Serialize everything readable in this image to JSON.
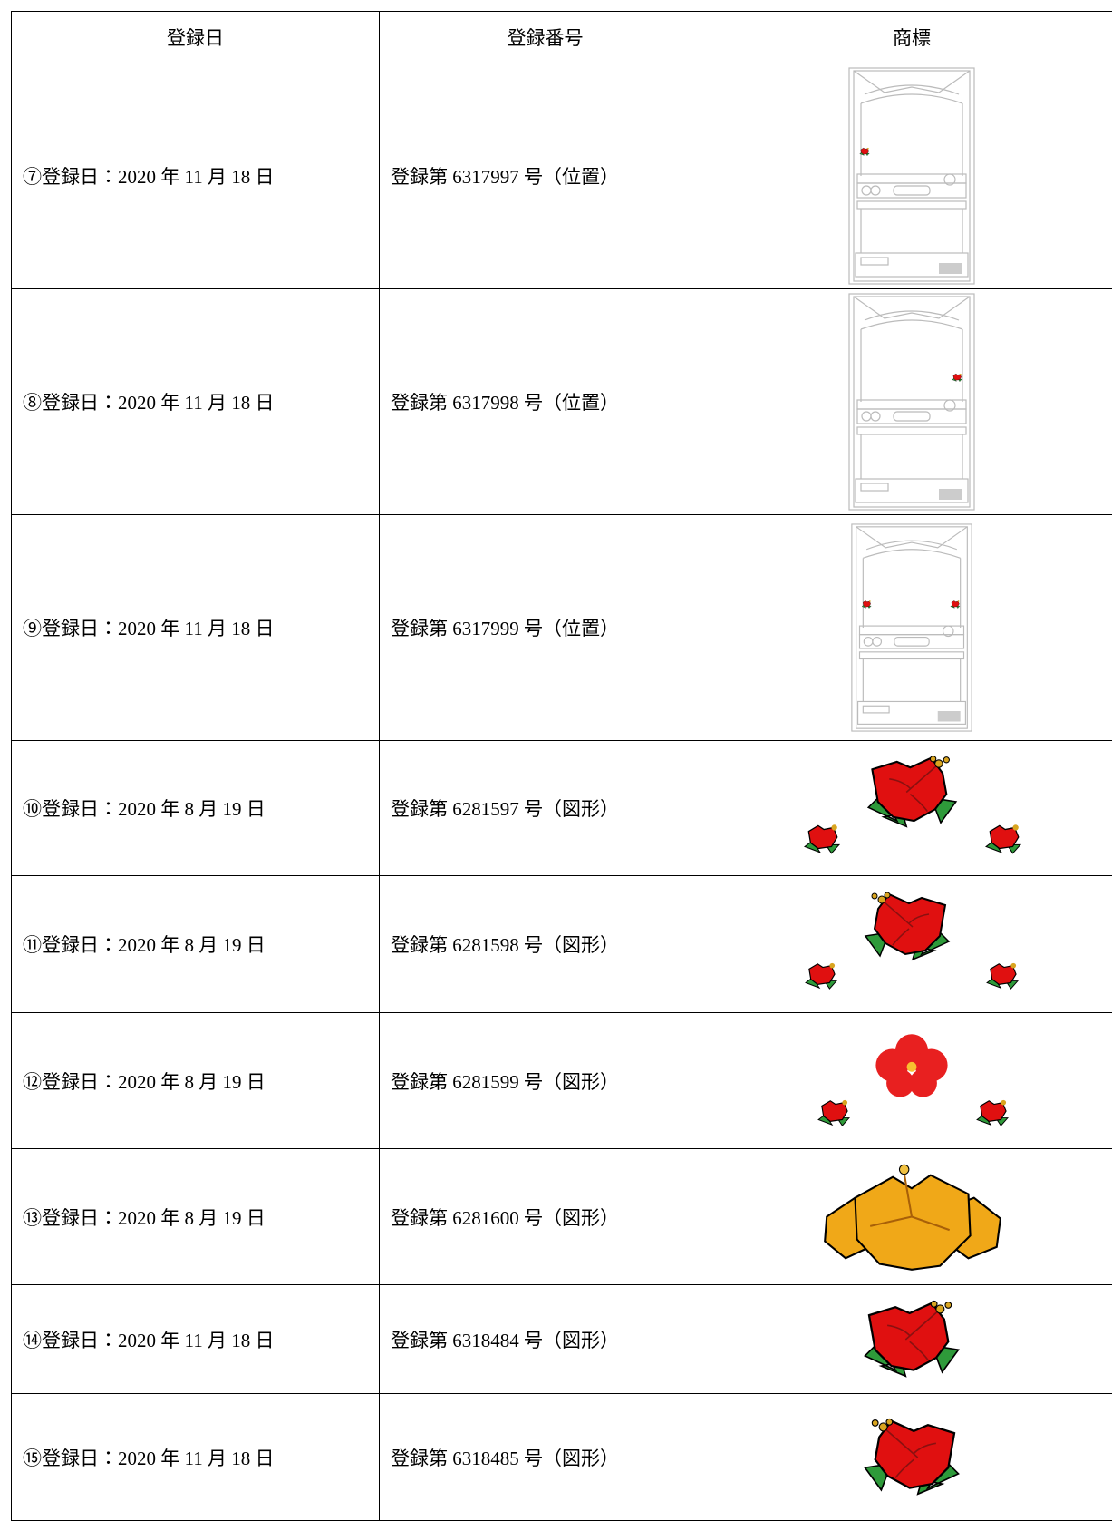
{
  "table": {
    "header": [
      "登録日",
      "登録番号",
      "商標"
    ],
    "rows": [
      [
        "⑦登録日：2020 年 11 月 18 日",
        "登録第 6317997 号（位置）"
      ],
      [
        "⑧登録日：2020 年 11 月 18 日",
        "登録第 6317998 号（位置）"
      ],
      [
        "⑨登録日：2020 年 11 月 18 日",
        "登録第 6317999 号（位置）"
      ],
      [
        "⑩登録日：2020 年 8 月 19 日",
        "登録第 6281597 号（図形）"
      ],
      [
        "⑪登録日：2020 年 8 月 19 日",
        "登録第 6281598 号（図形）"
      ],
      [
        "⑫登録日：2020 年 8 月 19 日",
        "登録第 6281599 号（図形）"
      ],
      [
        "⑬登録日：2020 年 8 月 19 日",
        "登録第 6281600 号（図形）"
      ],
      [
        "⑭登録日：2020 年 11 月 18 日",
        "登録第 6318484 号（図形）"
      ],
      [
        "⑮登録日：2020 年 11 月 18 日",
        "登録第 6318485 号（図形）"
      ]
    ]
  }
}
